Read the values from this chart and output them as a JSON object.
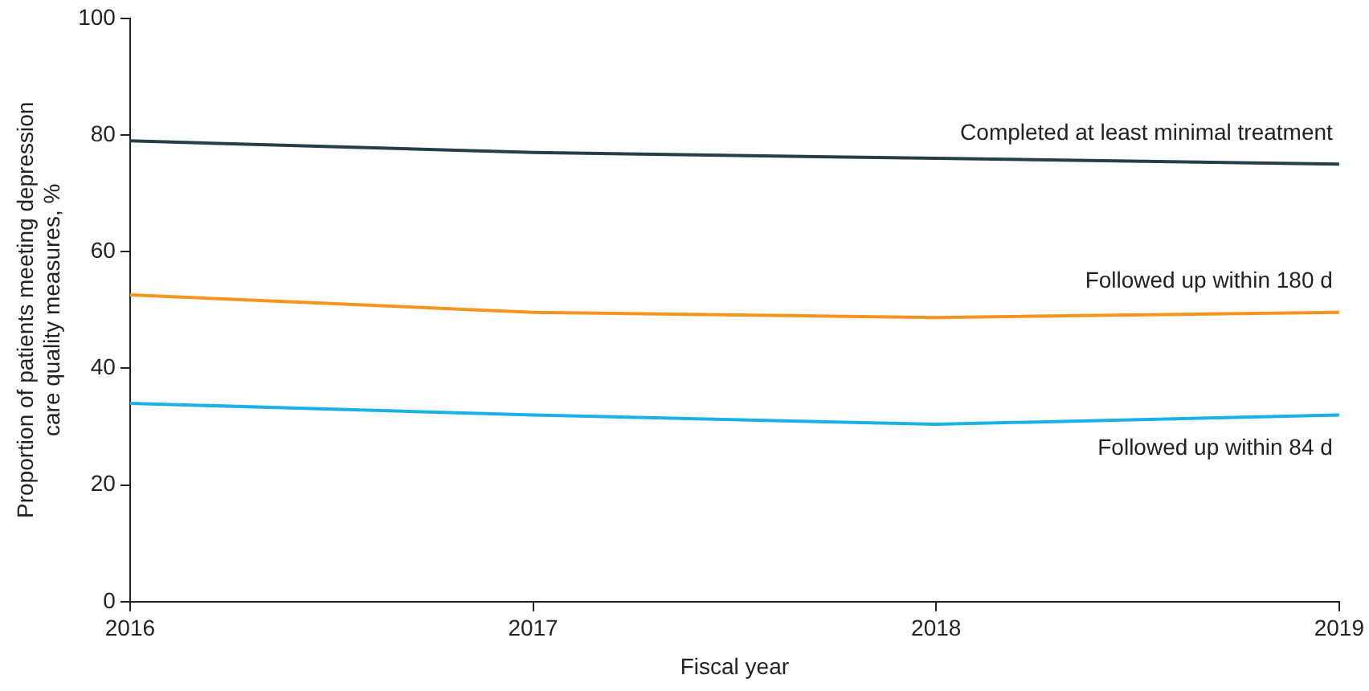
{
  "chart_data": {
    "type": "line",
    "xlabel": "Fiscal year",
    "ylabel": "Proportion of patients meeting depression care quality measures, %",
    "x": [
      2016,
      2017,
      2018,
      2019
    ],
    "xlim": [
      2016,
      2019
    ],
    "xticks": [
      2016,
      2017,
      2018,
      2019
    ],
    "ylim": [
      0,
      100
    ],
    "yticks": [
      0,
      20,
      40,
      60,
      80,
      100
    ],
    "grid": false,
    "legend": false,
    "marker": "none",
    "line_style": "solid",
    "series": [
      {
        "name": "Completed at least minimal treatment",
        "color": "#263e4a",
        "values": [
          79,
          77,
          76,
          75
        ]
      },
      {
        "name": "Followed up within 180 d",
        "color": "#f7941d",
        "values": [
          52.6,
          49.6,
          48.7,
          49.6
        ]
      },
      {
        "name": "Followed up within 84 d",
        "color": "#1ab0e8",
        "values": [
          34,
          32,
          30.4,
          32
        ]
      }
    ]
  }
}
